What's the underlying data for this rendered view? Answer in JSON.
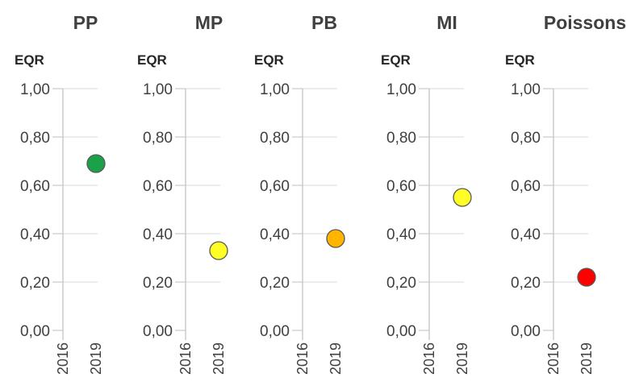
{
  "chart_data": [
    {
      "type": "scatter",
      "title": "PP",
      "ylabel": "EQR",
      "ylim": [
        0,
        1
      ],
      "yticks": [
        "0,00",
        "0,20",
        "0,40",
        "0,60",
        "0,80",
        "1,00"
      ],
      "categories": [
        "2016",
        "2019"
      ],
      "points": [
        {
          "x": "2019",
          "y": 0.69,
          "color": "#1aa14a"
        }
      ]
    },
    {
      "type": "scatter",
      "title": "MP",
      "ylabel": "EQR",
      "ylim": [
        0,
        1
      ],
      "yticks": [
        "0,00",
        "0,20",
        "0,40",
        "0,60",
        "0,80",
        "1,00"
      ],
      "categories": [
        "2016",
        "2019"
      ],
      "points": [
        {
          "x": "2019",
          "y": 0.33,
          "color": "#ffff26"
        }
      ]
    },
    {
      "type": "scatter",
      "title": "PB",
      "ylabel": "EQR",
      "ylim": [
        0,
        1
      ],
      "yticks": [
        "0,00",
        "0,20",
        "0,40",
        "0,60",
        "0,80",
        "1,00"
      ],
      "categories": [
        "2016",
        "2019"
      ],
      "points": [
        {
          "x": "2019",
          "y": 0.38,
          "color": "#ffb400"
        }
      ]
    },
    {
      "type": "scatter",
      "title": "MI",
      "ylabel": "EQR",
      "ylim": [
        0,
        1
      ],
      "yticks": [
        "0,00",
        "0,20",
        "0,40",
        "0,60",
        "0,80",
        "1,00"
      ],
      "categories": [
        "2016",
        "2019"
      ],
      "points": [
        {
          "x": "2019",
          "y": 0.55,
          "color": "#ffff26"
        }
      ]
    },
    {
      "type": "scatter",
      "title": "Poissons",
      "ylabel": "EQR",
      "ylim": [
        0,
        1
      ],
      "yticks": [
        "0,00",
        "0,20",
        "0,40",
        "0,60",
        "0,80",
        "1,00"
      ],
      "categories": [
        "2016",
        "2019"
      ],
      "points": [
        {
          "x": "2019",
          "y": 0.22,
          "color": "#ff0000"
        }
      ]
    }
  ]
}
